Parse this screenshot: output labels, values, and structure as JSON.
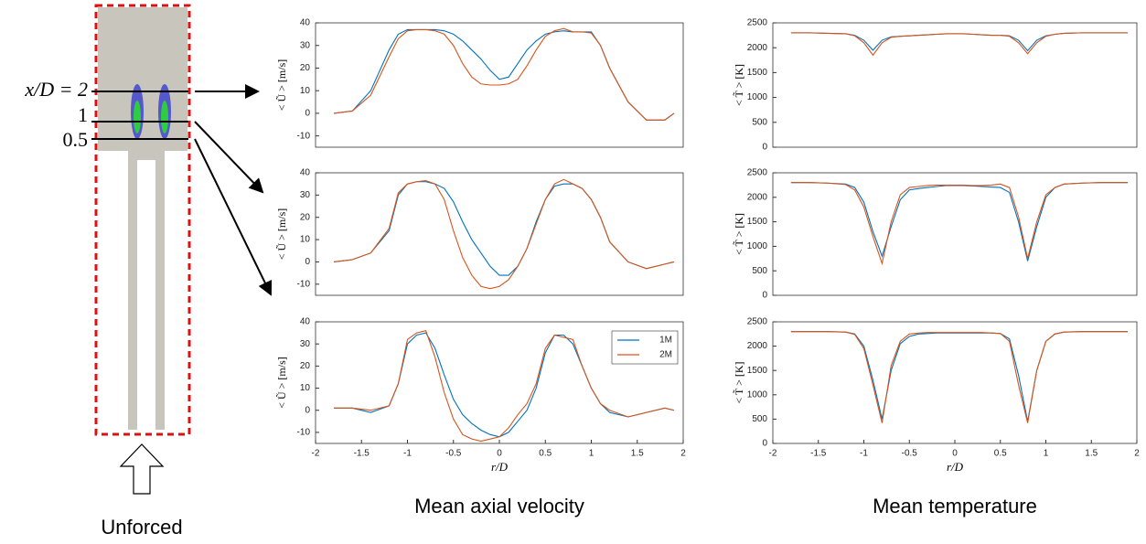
{
  "chart_data": [
    {
      "type": "line",
      "ylabel": "< Ũ > [m/s]",
      "xlim": [
        -2,
        2
      ],
      "ylim": [
        -15,
        40
      ],
      "yticks": [
        -10,
        0,
        10,
        20,
        30,
        40
      ],
      "x": [
        -1.8,
        -1.6,
        -1.4,
        -1.2,
        -1.1,
        -1,
        -0.9,
        -0.8,
        -0.7,
        -0.6,
        -0.5,
        -0.4,
        -0.3,
        -0.2,
        -0.1,
        0,
        0.1,
        0.2,
        0.3,
        0.4,
        0.5,
        0.6,
        0.7,
        0.8,
        0.9,
        1,
        1.1,
        1.2,
        1.4,
        1.6,
        1.8,
        1.9
      ],
      "series": [
        {
          "name": "1M",
          "color": "#0072bd",
          "values": [
            0,
            1,
            10,
            28,
            35,
            37,
            37,
            37,
            37,
            36.5,
            35,
            32,
            28,
            24,
            19,
            15,
            16,
            22,
            28,
            32,
            35,
            36,
            36.5,
            36,
            36,
            36,
            30,
            20,
            5,
            -3,
            -3,
            0
          ]
        },
        {
          "name": "2M",
          "color": "#d95319",
          "values": [
            0,
            1,
            8,
            25,
            33,
            36.5,
            37,
            37,
            36.5,
            35,
            30,
            22,
            16,
            13,
            12.5,
            12.5,
            13,
            15,
            21,
            28,
            34,
            36.5,
            37.5,
            36,
            36,
            35.5,
            30,
            20,
            5,
            -3,
            -3,
            0
          ]
        }
      ]
    },
    {
      "type": "line",
      "ylabel": "< T̃ > [K]",
      "xlim": [
        -2,
        2
      ],
      "ylim": [
        0,
        2500
      ],
      "yticks": [
        0,
        500,
        1000,
        1500,
        2000,
        2500
      ],
      "x": [
        -1.8,
        -1.6,
        -1.4,
        -1.2,
        -1.1,
        -1,
        -0.9,
        -0.8,
        -0.7,
        -0.6,
        -0.5,
        -0.4,
        -0.3,
        -0.2,
        -0.1,
        0,
        0.1,
        0.2,
        0.3,
        0.4,
        0.5,
        0.6,
        0.7,
        0.8,
        0.9,
        1,
        1.1,
        1.2,
        1.4,
        1.6,
        1.8,
        1.9
      ],
      "series": [
        {
          "name": "1M",
          "color": "#0072bd",
          "values": [
            2300,
            2300,
            2290,
            2280,
            2250,
            2150,
            1950,
            2150,
            2220,
            2230,
            2240,
            2250,
            2260,
            2270,
            2280,
            2280,
            2280,
            2270,
            2260,
            2250,
            2250,
            2240,
            2150,
            1940,
            2150,
            2240,
            2270,
            2290,
            2300,
            2300,
            2300,
            2300
          ]
        },
        {
          "name": "2M",
          "color": "#d95319",
          "values": [
            2300,
            2300,
            2290,
            2280,
            2240,
            2100,
            1850,
            2100,
            2210,
            2230,
            2240,
            2250,
            2260,
            2270,
            2280,
            2280,
            2280,
            2270,
            2260,
            2250,
            2250,
            2230,
            2100,
            1880,
            2100,
            2230,
            2270,
            2290,
            2300,
            2300,
            2300,
            2300
          ]
        }
      ]
    },
    {
      "type": "line",
      "ylabel": "< Ũ > [m/s]",
      "xlim": [
        -2,
        2
      ],
      "ylim": [
        -15,
        40
      ],
      "yticks": [
        -10,
        0,
        10,
        20,
        30,
        40
      ],
      "x": [
        -1.8,
        -1.6,
        -1.4,
        -1.2,
        -1.1,
        -1,
        -0.9,
        -0.8,
        -0.7,
        -0.6,
        -0.5,
        -0.4,
        -0.3,
        -0.2,
        -0.1,
        0,
        0.1,
        0.2,
        0.3,
        0.4,
        0.5,
        0.6,
        0.7,
        0.8,
        0.9,
        1,
        1.1,
        1.2,
        1.4,
        1.6,
        1.8,
        1.9
      ],
      "series": [
        {
          "name": "1M",
          "color": "#0072bd",
          "values": [
            0,
            1,
            4,
            14,
            30,
            35,
            36,
            36,
            35,
            33,
            27,
            18,
            10,
            4,
            -2,
            -6,
            -6,
            -2,
            6,
            18,
            28,
            34,
            35,
            35,
            33,
            28,
            20,
            9,
            0,
            -3,
            -1,
            0
          ]
        },
        {
          "name": "2M",
          "color": "#d95319",
          "values": [
            0,
            1,
            4,
            15,
            31,
            35,
            36,
            36.5,
            35,
            28,
            14,
            2,
            -6,
            -11,
            -12,
            -11,
            -8,
            -2,
            6,
            17,
            28,
            35,
            37,
            35,
            33,
            28,
            20,
            9,
            0,
            -3,
            -1,
            0
          ]
        }
      ]
    },
    {
      "type": "line",
      "ylabel": "< T̃ > [K]",
      "xlim": [
        -2,
        2
      ],
      "ylim": [
        0,
        2500
      ],
      "yticks": [
        0,
        500,
        1000,
        1500,
        2000,
        2500
      ],
      "x": [
        -1.8,
        -1.6,
        -1.4,
        -1.2,
        -1.1,
        -1,
        -0.9,
        -0.8,
        -0.7,
        -0.6,
        -0.5,
        -0.4,
        -0.3,
        -0.2,
        -0.1,
        0,
        0.1,
        0.2,
        0.3,
        0.4,
        0.5,
        0.6,
        0.7,
        0.8,
        0.9,
        1,
        1.1,
        1.2,
        1.4,
        1.6,
        1.8,
        1.9
      ],
      "series": [
        {
          "name": "1M",
          "color": "#0072bd",
          "values": [
            2300,
            2300,
            2290,
            2270,
            2200,
            1900,
            1300,
            800,
            1400,
            1950,
            2150,
            2180,
            2200,
            2220,
            2240,
            2240,
            2240,
            2230,
            2220,
            2210,
            2200,
            2100,
            1500,
            700,
            1400,
            2000,
            2200,
            2270,
            2290,
            2300,
            2300,
            2300
          ]
        },
        {
          "name": "2M",
          "color": "#d95319",
          "values": [
            2300,
            2300,
            2290,
            2260,
            2150,
            1800,
            1200,
            650,
            1500,
            2050,
            2200,
            2220,
            2240,
            2250,
            2250,
            2250,
            2250,
            2240,
            2240,
            2250,
            2270,
            2200,
            1600,
            750,
            1500,
            2050,
            2200,
            2270,
            2290,
            2300,
            2300,
            2300
          ]
        }
      ]
    },
    {
      "type": "line",
      "ylabel": "< Ũ > [m/s]",
      "xlabel": "r/D",
      "xlim": [
        -2,
        2
      ],
      "ylim": [
        -15,
        40
      ],
      "yticks": [
        -10,
        0,
        10,
        20,
        30,
        40
      ],
      "xticks": [
        -2,
        -1.5,
        -1,
        -0.5,
        0,
        0.5,
        1,
        1.5,
        2
      ],
      "legend": "upper right",
      "x": [
        -1.8,
        -1.6,
        -1.4,
        -1.2,
        -1.1,
        -1,
        -0.9,
        -0.8,
        -0.7,
        -0.6,
        -0.5,
        -0.4,
        -0.3,
        -0.2,
        -0.1,
        0,
        0.1,
        0.2,
        0.3,
        0.4,
        0.5,
        0.6,
        0.7,
        0.8,
        0.9,
        1,
        1.1,
        1.2,
        1.4,
        1.6,
        1.8,
        1.9
      ],
      "series": [
        {
          "name": "1M",
          "color": "#0072bd",
          "values": [
            1,
            1,
            -1,
            2,
            12,
            30,
            34,
            35,
            28,
            16,
            5,
            -2,
            -6,
            -9,
            -11,
            -12,
            -10,
            -5,
            0,
            10,
            26,
            34,
            34,
            30,
            20,
            10,
            3,
            -1,
            -3,
            -1,
            1,
            0
          ]
        },
        {
          "name": "2M",
          "color": "#d95319",
          "values": [
            1,
            1,
            0,
            2,
            12,
            32,
            35,
            36,
            24,
            8,
            -4,
            -11,
            -13,
            -14,
            -13,
            -12,
            -8,
            -2,
            3,
            12,
            28,
            34,
            33,
            32,
            20,
            10,
            3,
            0,
            -3,
            -1,
            1,
            0
          ]
        }
      ]
    },
    {
      "type": "line",
      "ylabel": "< T̃ > [K]",
      "xlabel": "r/D",
      "xlim": [
        -2,
        2
      ],
      "ylim": [
        0,
        2500
      ],
      "yticks": [
        0,
        500,
        1000,
        1500,
        2000,
        2500
      ],
      "xticks": [
        -2,
        -1.5,
        -1,
        -0.5,
        0,
        0.5,
        1,
        1.5,
        2
      ],
      "x": [
        -1.8,
        -1.6,
        -1.4,
        -1.2,
        -1.1,
        -1,
        -0.9,
        -0.8,
        -0.7,
        -0.6,
        -0.5,
        -0.4,
        -0.3,
        -0.2,
        -0.1,
        0,
        0.1,
        0.2,
        0.3,
        0.4,
        0.5,
        0.6,
        0.7,
        0.8,
        0.9,
        1,
        1.1,
        1.2,
        1.4,
        1.6,
        1.8,
        1.9
      ],
      "series": [
        {
          "name": "1M",
          "color": "#0072bd",
          "values": [
            2300,
            2300,
            2300,
            2290,
            2250,
            2000,
            1300,
            500,
            1500,
            2050,
            2200,
            2250,
            2260,
            2270,
            2270,
            2270,
            2270,
            2270,
            2270,
            2270,
            2260,
            2150,
            1400,
            450,
            1500,
            2100,
            2250,
            2290,
            2300,
            2300,
            2300,
            2300
          ]
        },
        {
          "name": "2M",
          "color": "#d95319",
          "values": [
            2300,
            2300,
            2300,
            2290,
            2240,
            1950,
            1200,
            420,
            1600,
            2100,
            2250,
            2270,
            2280,
            2280,
            2280,
            2280,
            2280,
            2280,
            2280,
            2270,
            2260,
            2100,
            1200,
            420,
            1500,
            2100,
            2250,
            2290,
            2300,
            2300,
            2300,
            2300
          ]
        }
      ]
    }
  ],
  "schematic": {
    "labels": [
      "x/D = 2",
      "1",
      "0.5"
    ],
    "caption": "Unforced"
  },
  "column_titles": [
    "Mean axial velocity",
    "Mean temperature"
  ]
}
